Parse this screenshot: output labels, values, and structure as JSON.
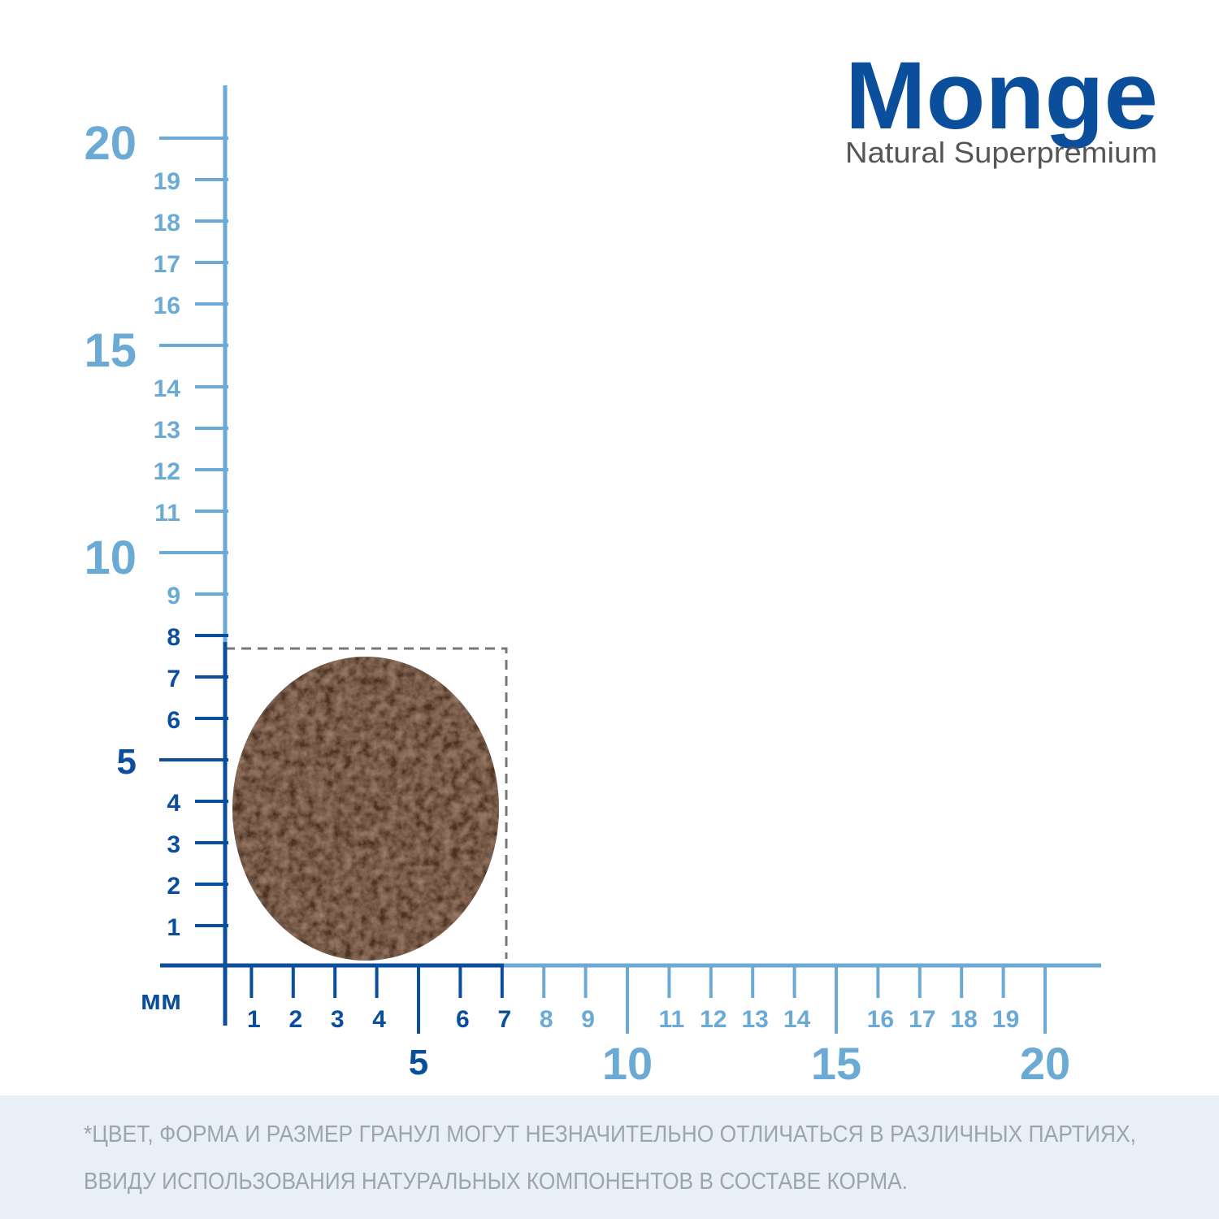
{
  "brand": {
    "name": "Monge",
    "tagline": "Natural Superpremium"
  },
  "ruler": {
    "unit": "мм",
    "y_labels": [
      1,
      2,
      3,
      4,
      5,
      6,
      7,
      8,
      9,
      10,
      11,
      12,
      13,
      14,
      15,
      16,
      17,
      18,
      19,
      20
    ],
    "x_labels": [
      1,
      2,
      3,
      4,
      5,
      6,
      7,
      8,
      9,
      10,
      11,
      12,
      13,
      14,
      15,
      16,
      17,
      18,
      19,
      20
    ]
  },
  "footnote": [
    "*ЦВЕТ, ФОРМА И РАЗМЕР ГРАНУЛ МОГУТ НЕЗНАЧИТЕЛЬНО ОТЛИЧАТЬСЯ В РАЗЛИЧНЫХ ПАРТИЯХ,",
    "ВВИДУ ИСПОЛЬЗОВАНИЯ НАТУРАЛЬНЫХ КОМПОНЕНТОВ В СОСТАВЕ КОРМА."
  ]
}
